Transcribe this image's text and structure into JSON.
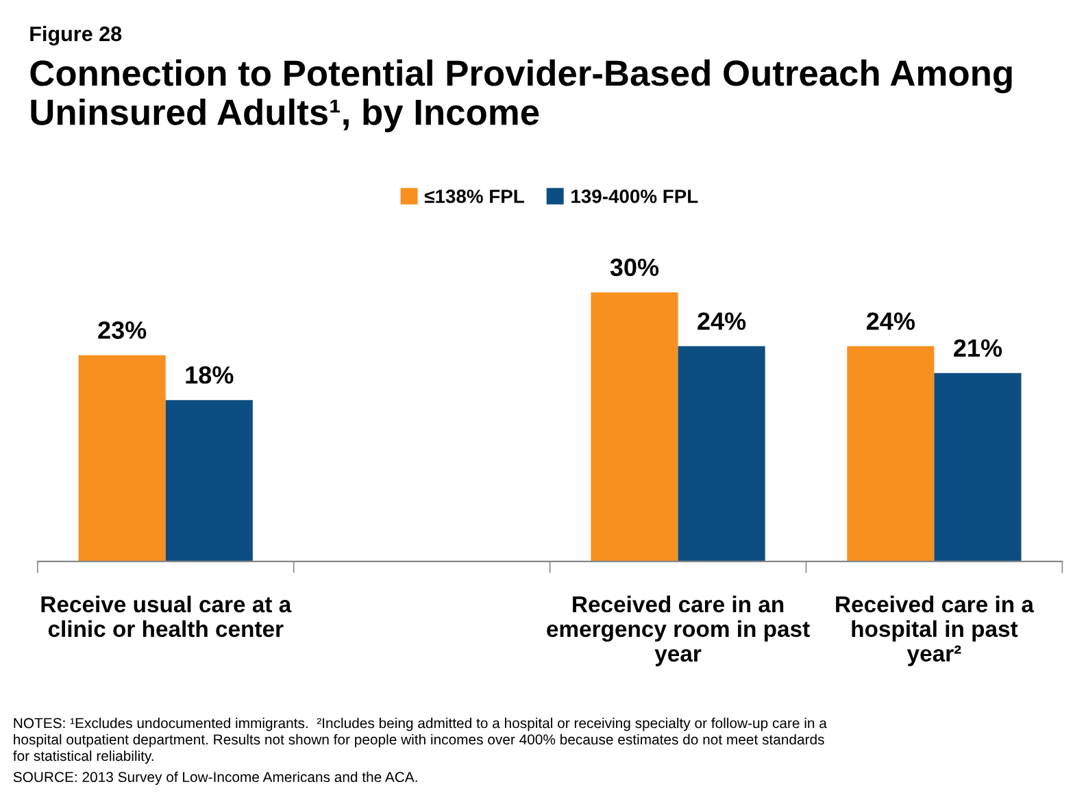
{
  "chart_data": {
    "type": "bar",
    "title": "Connection to Potential Provider-Based Outreach Among Uninsured Adults¹, by Income",
    "subtitle": "Figure 28",
    "categories": [
      "Receive usual care at a\nclinic or health center",
      null,
      "Received care in an\nemergency room in past\nyear",
      "Received care in a\nhospital in past\nyear²"
    ],
    "series": [
      {
        "name": "≤138% FPL",
        "color": "#f7901e",
        "values": [
          23,
          null,
          30,
          24
        ],
        "value_labels": [
          "23%",
          null,
          "30%",
          "24%"
        ]
      },
      {
        "name": "139-400% FPL",
        "color": "#0d4e82",
        "values": [
          18,
          null,
          24,
          21
        ],
        "value_labels": [
          "18%",
          null,
          "24%",
          "21%"
        ]
      }
    ],
    "legend": "top",
    "grid": false,
    "annotations": [
      "NOTES: ¹Excludes undocumented immigrants.  ²Includes being admitted to a hospital or receiving specialty or follow-up care in a\nhospital outpatient department. Results not shown for people with incomes over 400% because estimates do not meet standards\nfor statistical reliability.",
      "SOURCE: 2013 Survey of Low-Income Americans and the ACA."
    ]
  }
}
